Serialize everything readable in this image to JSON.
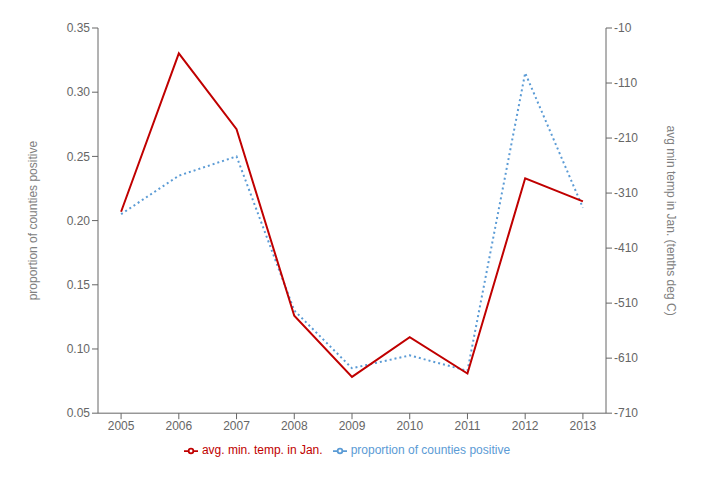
{
  "chart_data": {
    "type": "line",
    "x": [
      2005,
      2006,
      2007,
      2008,
      2009,
      2010,
      2011,
      2012,
      2013
    ],
    "xlim": [
      2004.6,
      2013.4
    ],
    "xticks": [
      2005,
      2006,
      2007,
      2008,
      2009,
      2010,
      2011,
      2012,
      2013
    ],
    "ylabel": "proportion of counties positive",
    "ylim": [
      0.05,
      0.35
    ],
    "yticks": [
      0.05,
      {
        "value": 0.1,
        "label": "0.10"
      },
      0.15,
      {
        "value": 0.2,
        "label": "0.20"
      },
      0.25,
      {
        "value": 0.3,
        "label": "0.30"
      },
      0.35
    ],
    "y2label": "avg min temp in Jan. (tenths deg C)",
    "y2lim": [
      -710,
      -10
    ],
    "y2ticks": [
      -710,
      -610,
      -510,
      -410,
      -310,
      -210,
      -110,
      -10
    ],
    "series": [
      {
        "name": "proportion of counties positive",
        "color": "#5B9BD5",
        "line_style": "dotted",
        "values": [
          0.205,
          0.235,
          0.25,
          0.13,
          0.085,
          0.095,
          0.083,
          0.315,
          0.21
        ]
      },
      {
        "name": "avg. min. temp. in Jan.",
        "color": "#C00000",
        "line_style": "solid",
        "axis": "y2",
        "values": [
          -344,
          -56,
          -194,
          -533,
          -644,
          -572,
          -638,
          -283,
          -325
        ]
      }
    ],
    "grid": false,
    "legend": "bottom"
  }
}
